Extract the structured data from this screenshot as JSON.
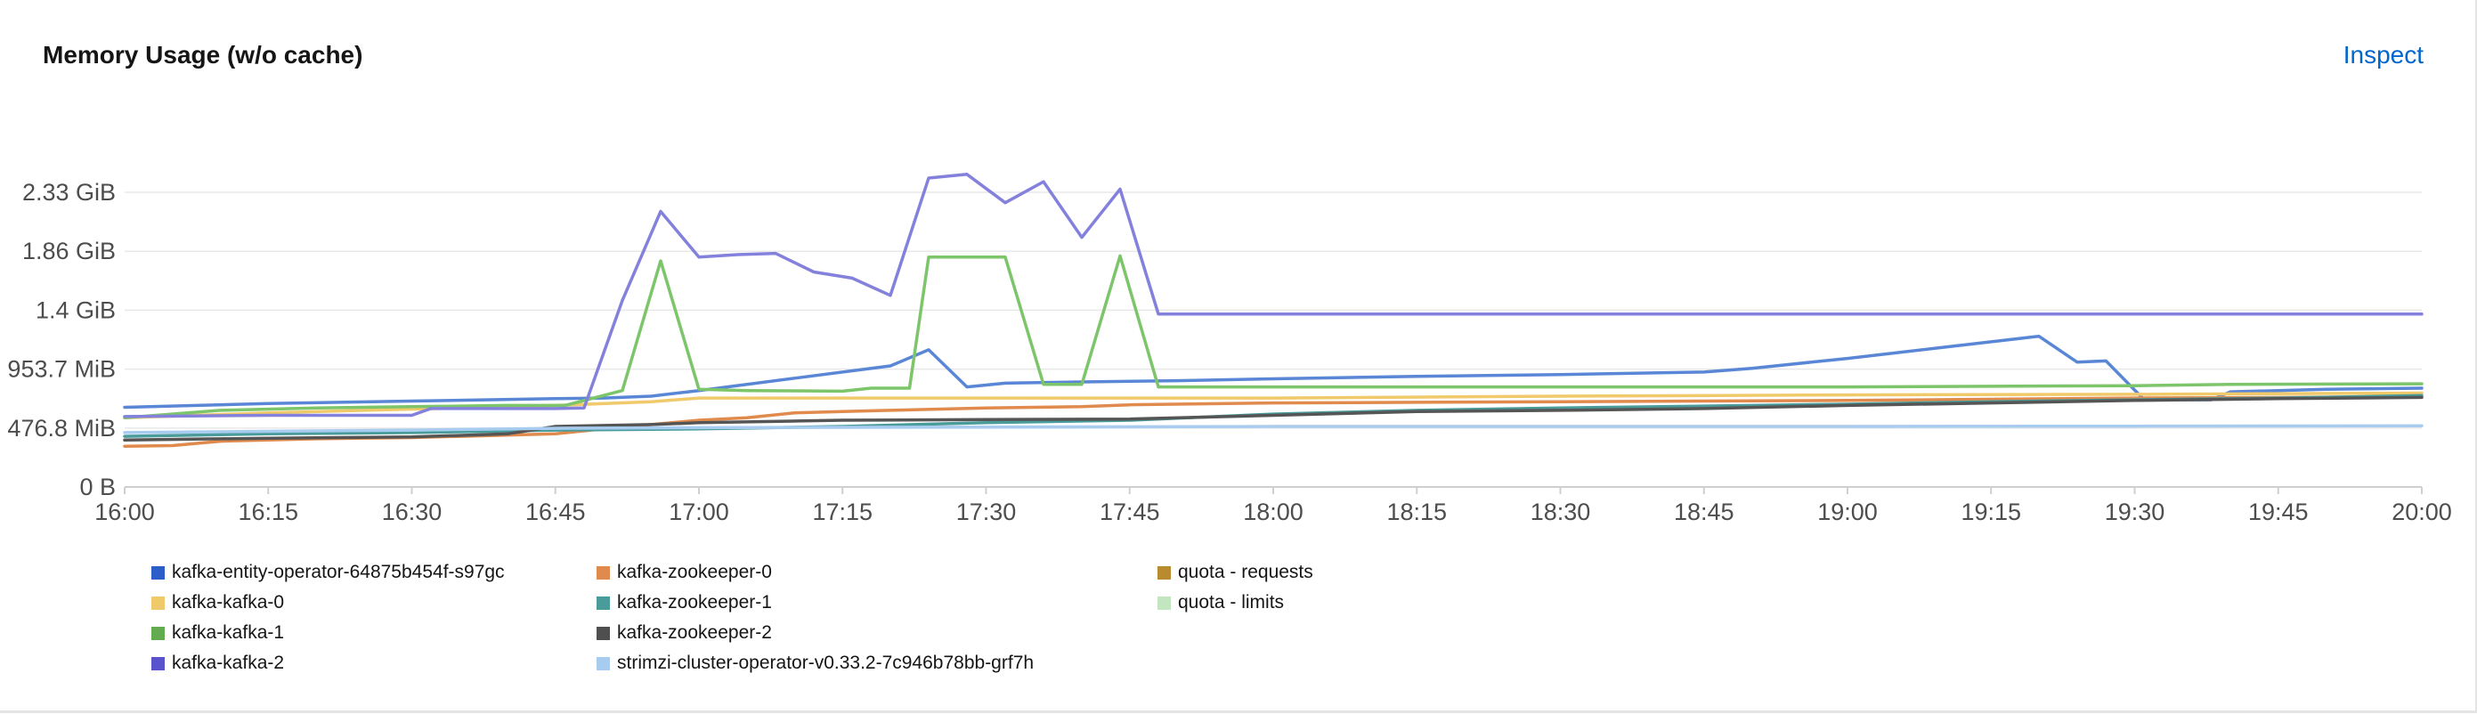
{
  "card": {
    "title": "Memory Usage (w/o cache)",
    "inspect_label": "Inspect"
  },
  "chart_data": {
    "type": "line",
    "title": "Memory Usage (w/o cache)",
    "xlabel": "",
    "ylabel": "",
    "x_unit": "time",
    "y_unit": "MiB",
    "xlim": [
      "16:00",
      "20:00"
    ],
    "ylim": [
      0,
      2860
    ],
    "x_ticks": [
      "16:00",
      "16:15",
      "16:30",
      "16:45",
      "17:00",
      "17:15",
      "17:30",
      "17:45",
      "18:00",
      "18:15",
      "18:30",
      "18:45",
      "19:00",
      "19:15",
      "19:30",
      "19:45",
      "20:00"
    ],
    "y_ticks": [
      {
        "value": 0,
        "label": "0 B"
      },
      {
        "value": 476.8,
        "label": "476.8 MiB"
      },
      {
        "value": 953.7,
        "label": "953.7 MiB"
      },
      {
        "value": 1430.5,
        "label": "1.4 GiB"
      },
      {
        "value": 1907.3,
        "label": "1.86 GiB"
      },
      {
        "value": 2384.2,
        "label": "2.33 GiB"
      }
    ],
    "grid": "horizontal",
    "legend_position": "bottom",
    "series": [
      {
        "name": "kafka-entity-operator-64875b454f-s97gc",
        "color": "#5a86d6",
        "points": [
          [
            "16:00",
            645
          ],
          [
            "16:15",
            675
          ],
          [
            "16:30",
            695
          ],
          [
            "16:45",
            715
          ],
          [
            "16:50",
            720
          ],
          [
            "16:55",
            735
          ],
          [
            "17:00",
            780
          ],
          [
            "17:10",
            880
          ],
          [
            "17:20",
            980
          ],
          [
            "17:24",
            1110
          ],
          [
            "17:28",
            810
          ],
          [
            "17:32",
            840
          ],
          [
            "17:40",
            850
          ],
          [
            "17:50",
            860
          ],
          [
            "18:00",
            875
          ],
          [
            "18:15",
            895
          ],
          [
            "18:30",
            910
          ],
          [
            "18:45",
            930
          ],
          [
            "18:50",
            960
          ],
          [
            "19:00",
            1040
          ],
          [
            "19:10",
            1130
          ],
          [
            "19:20",
            1220
          ],
          [
            "19:24",
            1010
          ],
          [
            "19:27",
            1020
          ],
          [
            "19:31",
            705
          ],
          [
            "19:38",
            705
          ],
          [
            "19:40",
            770
          ],
          [
            "19:50",
            790
          ],
          [
            "20:00",
            800
          ]
        ]
      },
      {
        "name": "kafka-kafka-0",
        "color": "#f0ca6a",
        "points": [
          [
            "16:00",
            560
          ],
          [
            "16:15",
            600
          ],
          [
            "16:30",
            630
          ],
          [
            "16:45",
            660
          ],
          [
            "16:55",
            690
          ],
          [
            "17:00",
            720
          ],
          [
            "17:30",
            720
          ],
          [
            "18:00",
            720
          ],
          [
            "18:30",
            735
          ],
          [
            "19:00",
            745
          ],
          [
            "19:30",
            750
          ],
          [
            "20:00",
            760
          ]
        ]
      },
      {
        "name": "kafka-kafka-1",
        "color": "#7dc56a",
        "points": [
          [
            "16:00",
            560
          ],
          [
            "16:10",
            620
          ],
          [
            "16:20",
            640
          ],
          [
            "16:30",
            650
          ],
          [
            "16:40",
            660
          ],
          [
            "16:46",
            660
          ],
          [
            "16:52",
            780
          ],
          [
            "16:56",
            1830
          ],
          [
            "17:00",
            790
          ],
          [
            "17:05",
            780
          ],
          [
            "17:15",
            775
          ],
          [
            "17:18",
            800
          ],
          [
            "17:22",
            800
          ],
          [
            "17:24",
            1860
          ],
          [
            "17:32",
            1860
          ],
          [
            "17:36",
            830
          ],
          [
            "17:40",
            830
          ],
          [
            "17:44",
            1870
          ],
          [
            "17:48",
            810
          ],
          [
            "18:00",
            810
          ],
          [
            "18:30",
            810
          ],
          [
            "19:00",
            810
          ],
          [
            "19:30",
            820
          ],
          [
            "19:40",
            830
          ],
          [
            "20:00",
            835
          ]
        ]
      },
      {
        "name": "kafka-kafka-2",
        "color": "#8481dd",
        "points": [
          [
            "16:00",
            570
          ],
          [
            "16:15",
            580
          ],
          [
            "16:30",
            580
          ],
          [
            "16:32",
            635
          ],
          [
            "16:45",
            635
          ],
          [
            "16:48",
            640
          ],
          [
            "16:52",
            1510
          ],
          [
            "16:56",
            2230
          ],
          [
            "17:00",
            1860
          ],
          [
            "17:04",
            1880
          ],
          [
            "17:08",
            1890
          ],
          [
            "17:12",
            1740
          ],
          [
            "17:16",
            1690
          ],
          [
            "17:20",
            1550
          ],
          [
            "17:24",
            2500
          ],
          [
            "17:28",
            2530
          ],
          [
            "17:32",
            2300
          ],
          [
            "17:36",
            2470
          ],
          [
            "17:40",
            2020
          ],
          [
            "17:44",
            2410
          ],
          [
            "17:48",
            1400
          ],
          [
            "18:00",
            1400
          ],
          [
            "18:30",
            1400
          ],
          [
            "19:00",
            1400
          ],
          [
            "19:30",
            1400
          ],
          [
            "20:00",
            1400
          ]
        ]
      },
      {
        "name": "kafka-zookeeper-0",
        "color": "#e08b4d",
        "points": [
          [
            "16:00",
            330
          ],
          [
            "16:05",
            335
          ],
          [
            "16:10",
            370
          ],
          [
            "16:20",
            390
          ],
          [
            "16:30",
            400
          ],
          [
            "16:40",
            420
          ],
          [
            "16:45",
            430
          ],
          [
            "16:50",
            470
          ],
          [
            "17:00",
            540
          ],
          [
            "17:05",
            560
          ],
          [
            "17:10",
            600
          ],
          [
            "17:15",
            610
          ],
          [
            "17:20",
            620
          ],
          [
            "17:30",
            640
          ],
          [
            "17:40",
            650
          ],
          [
            "17:45",
            665
          ],
          [
            "18:00",
            680
          ],
          [
            "18:15",
            685
          ],
          [
            "18:30",
            690
          ],
          [
            "19:00",
            700
          ],
          [
            "19:30",
            720
          ],
          [
            "20:00",
            730
          ]
        ]
      },
      {
        "name": "kafka-zookeeper-1",
        "color": "#4a9c9b",
        "points": [
          [
            "16:00",
            410
          ],
          [
            "16:15",
            430
          ],
          [
            "16:30",
            440
          ],
          [
            "16:45",
            460
          ],
          [
            "17:00",
            470
          ],
          [
            "17:15",
            490
          ],
          [
            "17:30",
            520
          ],
          [
            "17:45",
            540
          ],
          [
            "18:00",
            590
          ],
          [
            "18:15",
            620
          ],
          [
            "18:30",
            640
          ],
          [
            "18:45",
            655
          ],
          [
            "19:00",
            670
          ],
          [
            "19:15",
            690
          ],
          [
            "19:30",
            705
          ],
          [
            "19:45",
            720
          ],
          [
            "20:00",
            740
          ]
        ]
      },
      {
        "name": "kafka-zookeeper-2",
        "color": "#555555",
        "points": [
          [
            "16:00",
            380
          ],
          [
            "16:15",
            395
          ],
          [
            "16:30",
            405
          ],
          [
            "16:40",
            430
          ],
          [
            "16:45",
            490
          ],
          [
            "16:55",
            505
          ],
          [
            "17:00",
            520
          ],
          [
            "17:15",
            540
          ],
          [
            "17:30",
            545
          ],
          [
            "17:45",
            550
          ],
          [
            "18:00",
            580
          ],
          [
            "18:15",
            610
          ],
          [
            "18:30",
            620
          ],
          [
            "18:45",
            635
          ],
          [
            "19:00",
            660
          ],
          [
            "19:15",
            680
          ],
          [
            "19:30",
            700
          ],
          [
            "19:45",
            715
          ],
          [
            "20:00",
            725
          ]
        ]
      },
      {
        "name": "strimzi-cluster-operator-v0.33.2-7c946b78bb-grf7h",
        "color": "#a8ccf0",
        "points": [
          [
            "16:00",
            440
          ],
          [
            "16:30",
            460
          ],
          [
            "16:45",
            475
          ],
          [
            "17:00",
            480
          ],
          [
            "17:30",
            485
          ],
          [
            "18:00",
            490
          ],
          [
            "18:30",
            490
          ],
          [
            "19:00",
            490
          ],
          [
            "19:30",
            492
          ],
          [
            "20:00",
            495
          ]
        ]
      },
      {
        "name": "quota - requests",
        "color": "#b98b2f",
        "points": []
      },
      {
        "name": "quota - limits",
        "color": "#c3e6c0",
        "points": []
      }
    ]
  },
  "legend": {
    "columns": [
      [
        {
          "label": "kafka-entity-operator-64875b454f-s97gc",
          "color": "#2b5fc7"
        },
        {
          "label": "kafka-kafka-0",
          "color": "#f0ca6a"
        },
        {
          "label": "kafka-kafka-1",
          "color": "#62ab4f"
        },
        {
          "label": "kafka-kafka-2",
          "color": "#5a52cc"
        }
      ],
      [
        {
          "label": "kafka-zookeeper-0",
          "color": "#e08b4d"
        },
        {
          "label": "kafka-zookeeper-1",
          "color": "#4a9c9b"
        },
        {
          "label": "kafka-zookeeper-2",
          "color": "#4f4f4f"
        },
        {
          "label": "strimzi-cluster-operator-v0.33.2-7c946b78bb-grf7h",
          "color": "#a8ccf0"
        }
      ],
      [
        {
          "label": "quota - requests",
          "color": "#b98b2f"
        },
        {
          "label": "quota - limits",
          "color": "#c3e6c0"
        }
      ]
    ]
  }
}
